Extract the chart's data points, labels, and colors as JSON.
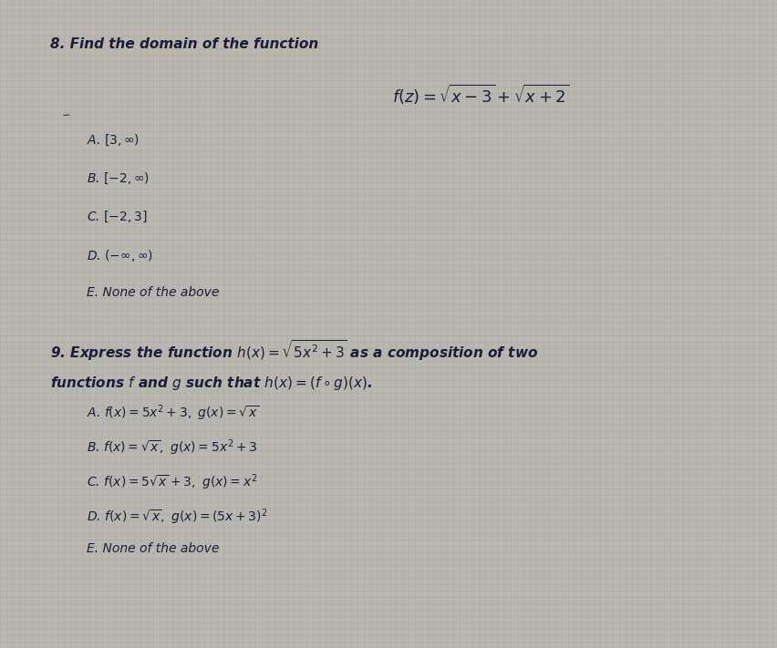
{
  "background_color": "#b8b8b0",
  "grid_color": "#a0a098",
  "text_color": "#1a1e3a",
  "title_q8": "8. Find the domain of the function",
  "formula_q8": "$f(z) = \\sqrt{x-3} + \\sqrt{x+2}$",
  "options_q8": [
    "A. $[3, \\infty)$",
    "B. $[-2, \\infty)$",
    "C. $[-2, 3]$",
    "D. $(-\\infty, \\infty)$",
    "E. None of the above"
  ],
  "title_q9a": "9. Express the function $h(x) = \\sqrt{5x^2+3}$ as a composition of two",
  "title_q9b": "functions $f$ and $g$ such that $h(x) = (f \\circ g)(x)$.",
  "options_q9": [
    "A. $f(x) = 5x^2+3,\\ g(x) = \\sqrt{x}$",
    "B. $f(x) = \\sqrt{x},\\ g(x) = 5x^2+3$",
    "C. $f(x) = 5\\sqrt{x}+3,\\ g(x) = x^2$",
    "D. $f(x) = \\sqrt{x},\\ g(x) = (5x+3)^2$",
    "E. None of the above"
  ],
  "font_size_title": 11,
  "font_size_formula": 12,
  "font_size_option": 10,
  "fig_width": 8.52,
  "fig_height": 7.11,
  "dpi": 100
}
